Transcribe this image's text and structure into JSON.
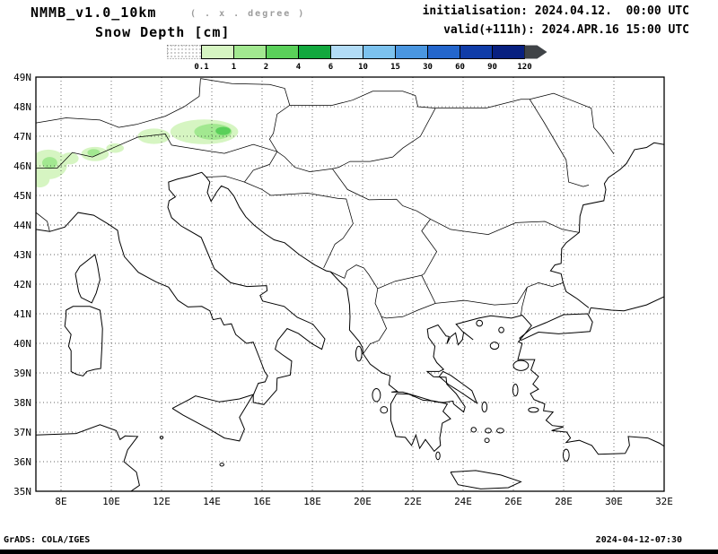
{
  "header": {
    "model": "NMMB_v1.0_10km",
    "degree_note": "( . x . degree )",
    "variable": "Snow Depth [cm]",
    "init_line": "initialisation: 2024.04.12.  00:00 UTC",
    "valid_line": "valid(+111h): 2024.APR.16 15:00 UTC"
  },
  "footer": {
    "left": "GrADS: COLA/IGES",
    "right": "2024-04-12-07:30"
  },
  "chart_data": {
    "type": "map-shaded-contour",
    "title": "Snow Depth [cm]",
    "model": "NMMB_v1.0_10km",
    "initialisation": "2024.04.12. 00:00 UTC",
    "valid": "2024.APR.16 15:00 UTC",
    "forecast_hour": "+111h",
    "lat_ticks": [
      "49N",
      "48N",
      "47N",
      "46N",
      "45N",
      "44N",
      "43N",
      "42N",
      "41N",
      "40N",
      "39N",
      "38N",
      "37N",
      "36N",
      "35N"
    ],
    "lon_ticks": [
      "8E",
      "10E",
      "12E",
      "14E",
      "16E",
      "18E",
      "20E",
      "22E",
      "24E",
      "26E",
      "28E",
      "30E",
      "32E"
    ],
    "grid": {
      "lat_step_deg": 1,
      "lon_step_deg": 2,
      "style": "dotted"
    },
    "legend": {
      "unit": "cm",
      "boundary_values": [
        "0.1",
        "1",
        "2",
        "4",
        "6",
        "10",
        "15",
        "30",
        "60",
        "90",
        "120"
      ],
      "below_min": "hatched-white",
      "segment_colors": [
        "#d6f5c2",
        "#a2e890",
        "#5ad05a",
        "#12a83e",
        "#b2dcf6",
        "#7cc2ee",
        "#4a96e0",
        "#2466cc",
        "#103ca8",
        "#082080"
      ],
      "overflow_color": "#3f4347",
      "outline_color": "#000000"
    },
    "snow_patches": [
      {
        "lon": 13.7,
        "lat": 47.15,
        "rx_deg": 1.35,
        "ry_deg": 0.42,
        "level": "0.1"
      },
      {
        "lon": 14.05,
        "lat": 47.15,
        "rx_deg": 0.75,
        "ry_deg": 0.27,
        "level": "1"
      },
      {
        "lon": 14.45,
        "lat": 47.18,
        "rx_deg": 0.3,
        "ry_deg": 0.14,
        "level": "2"
      },
      {
        "lon": 11.7,
        "lat": 47.0,
        "rx_deg": 0.65,
        "ry_deg": 0.26,
        "level": "0.1"
      },
      {
        "lon": 10.15,
        "lat": 46.6,
        "rx_deg": 0.35,
        "ry_deg": 0.16,
        "level": "0.1"
      },
      {
        "lon": 9.35,
        "lat": 46.4,
        "rx_deg": 0.55,
        "ry_deg": 0.24,
        "level": "0.1"
      },
      {
        "lon": 9.3,
        "lat": 46.45,
        "rx_deg": 0.25,
        "ry_deg": 0.12,
        "level": "1"
      },
      {
        "lon": 8.35,
        "lat": 46.25,
        "rx_deg": 0.35,
        "ry_deg": 0.2,
        "level": "0.1"
      },
      {
        "lon": 7.5,
        "lat": 46.05,
        "rx_deg": 0.75,
        "ry_deg": 0.5,
        "level": "0.1"
      },
      {
        "lon": 7.55,
        "lat": 46.1,
        "rx_deg": 0.3,
        "ry_deg": 0.2,
        "level": "1"
      },
      {
        "lon": 7.15,
        "lat": 45.55,
        "rx_deg": 0.4,
        "ry_deg": 0.28,
        "level": "0.1"
      }
    ]
  }
}
